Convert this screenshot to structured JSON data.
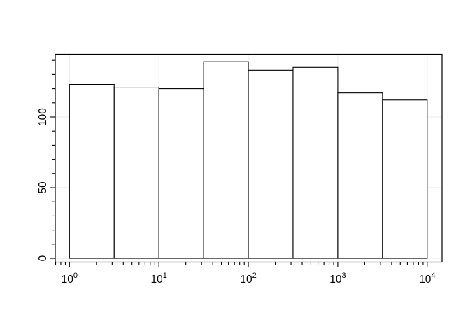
{
  "figure": {
    "background": "#ffffff",
    "description": "Histogram of values on a logarithmic x axis"
  },
  "chart_data": {
    "type": "bar",
    "subtype": "histogram",
    "title": "",
    "xlabel": "",
    "ylabel": "",
    "x_scale": "log10",
    "bin_edges_log10": [
      0,
      0.5,
      1,
      1.5,
      2,
      2.5,
      3,
      3.5,
      4
    ],
    "counts": [
      123,
      121,
      120,
      139,
      133,
      135,
      117,
      112
    ],
    "xlim_log10": [
      -0.159,
      4.166
    ],
    "ylim": [
      -2.7,
      144.3
    ],
    "x_major_tick_exponents": [
      0,
      1,
      2,
      3,
      4
    ],
    "x_tick_mantissa_base": "10",
    "x_minor_tick_mantissas": [
      2,
      3,
      4,
      5,
      6,
      7,
      8,
      9
    ],
    "y_major_ticks": [
      0,
      50,
      100
    ],
    "y_major_tick_labels": [
      "0",
      "50",
      "100"
    ],
    "y_minor_ticks": [
      0,
      10,
      20,
      30,
      40,
      50,
      60,
      70,
      80,
      90,
      100,
      110,
      120,
      130,
      140
    ],
    "grid": {
      "show": true,
      "horizontal_at": [
        0,
        50,
        100
      ],
      "vertical_at_exponents": [
        0,
        1,
        2,
        3,
        4
      ],
      "color": "#e8e8e8"
    },
    "legend": null,
    "style": {
      "bar_fill": "#ffffff",
      "bar_stroke": "#000000",
      "axis_color": "#000000",
      "tick_label_color": "#000000",
      "frame_color": "#000000"
    }
  }
}
